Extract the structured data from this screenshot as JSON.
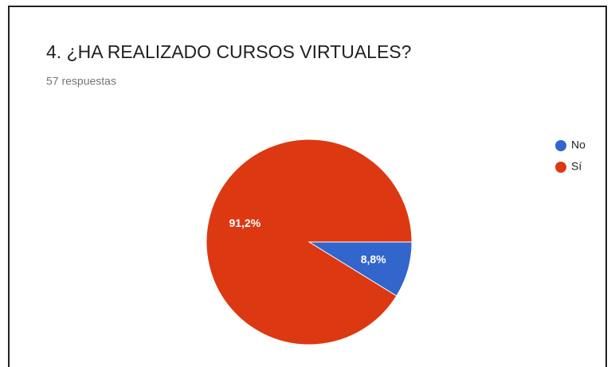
{
  "chart_data": {
    "type": "pie",
    "title": "4. ¿HA REALIZADO CURSOS VIRTUALES?",
    "subtitle": "57 respuestas",
    "categories": [
      "No",
      "Sí"
    ],
    "values": [
      8.8,
      91.2
    ],
    "value_labels": [
      "8,8%",
      "91,2%"
    ],
    "colors": [
      "#3366cc",
      "#dc3912"
    ],
    "legend": "right"
  }
}
